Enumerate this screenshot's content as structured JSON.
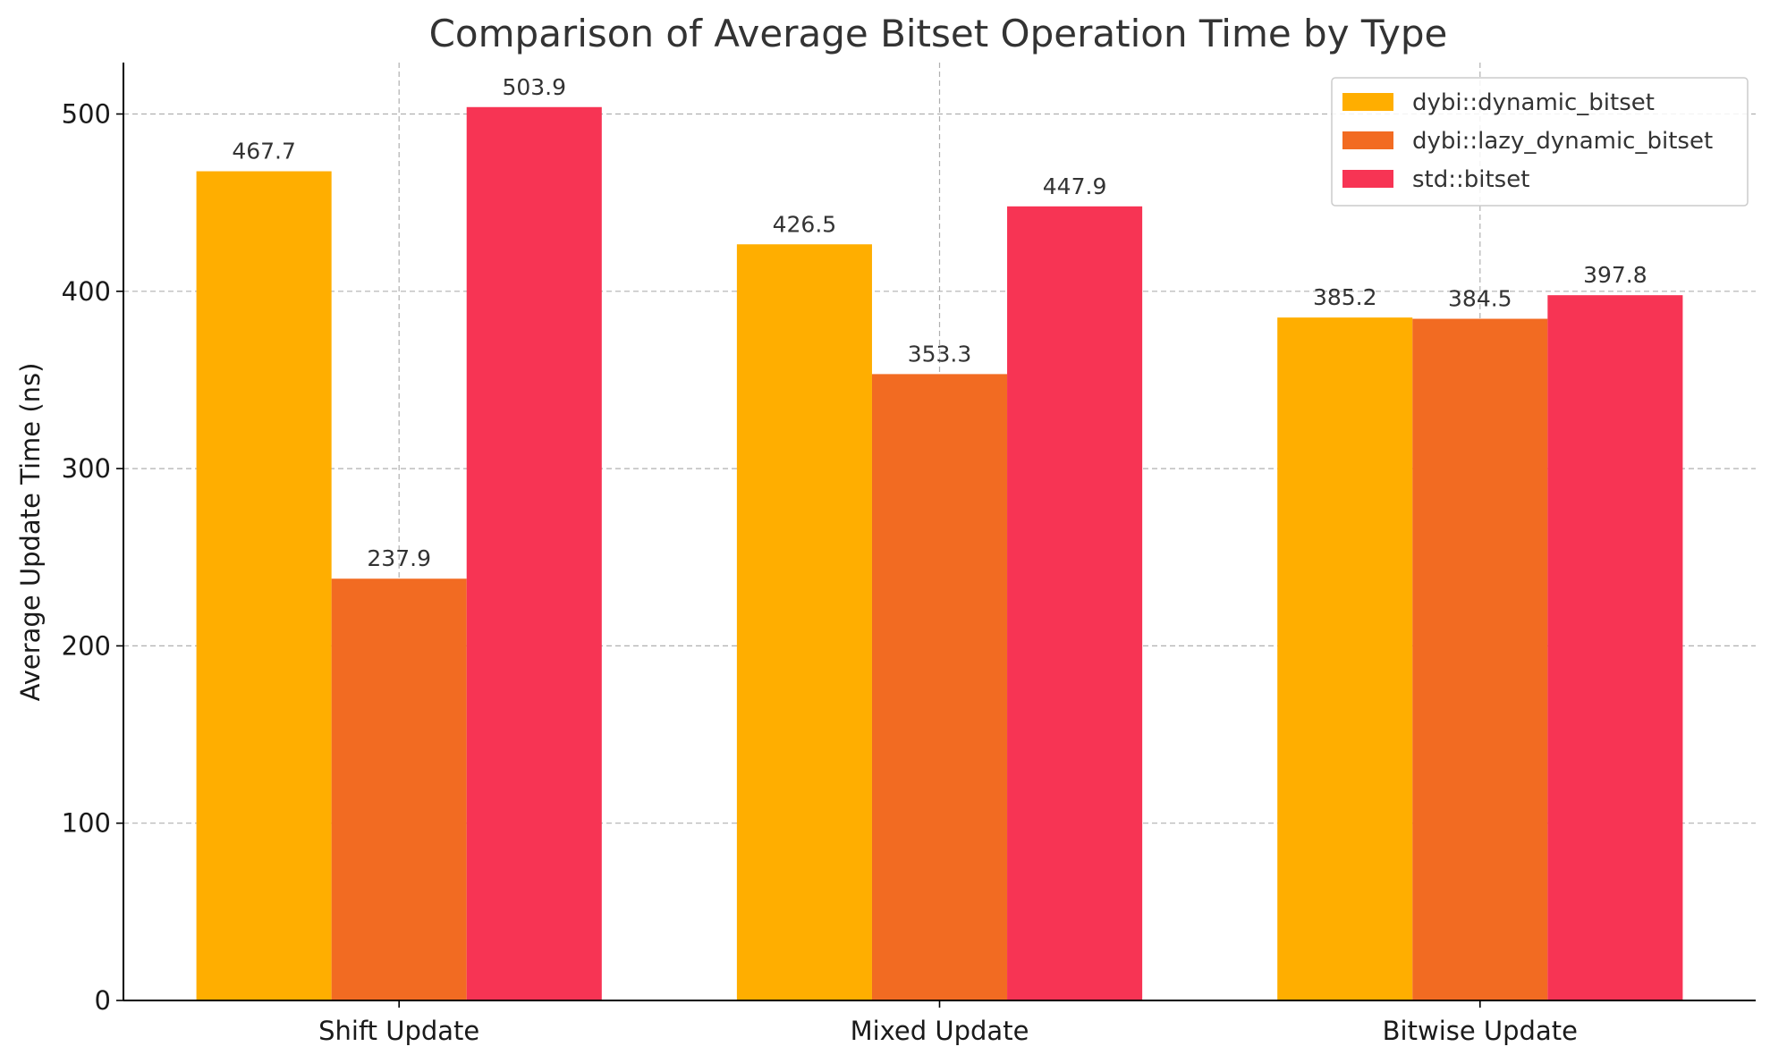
{
  "chart_data": {
    "type": "bar",
    "title": "Comparison of Average Bitset Operation Time by Type",
    "xlabel": "",
    "ylabel": "Average Update Time (ns)",
    "categories": [
      "Shift Update",
      "Mixed Update",
      "Bitwise Update"
    ],
    "series": [
      {
        "name": "dybi::dynamic_bitset",
        "values": [
          467.7,
          426.5,
          385.2
        ],
        "labels": [
          "467.7",
          "426.5",
          "385.2"
        ],
        "color": "#FFAE00"
      },
      {
        "name": "dybi::lazy_dynamic_bitset",
        "values": [
          237.9,
          353.3,
          384.5
        ],
        "labels": [
          "237.9",
          "353.3",
          "384.5"
        ],
        "color": "#F26B22"
      },
      {
        "name": "std::bitset",
        "values": [
          503.9,
          447.9,
          397.8
        ],
        "labels": [
          "503.9",
          "447.9",
          "397.8"
        ],
        "color": "#F73454"
      }
    ],
    "yticks": [
      "0",
      "100",
      "200",
      "300",
      "400",
      "500"
    ],
    "ylim": [
      0,
      529
    ],
    "grid": true,
    "legend_position": "top-right"
  }
}
